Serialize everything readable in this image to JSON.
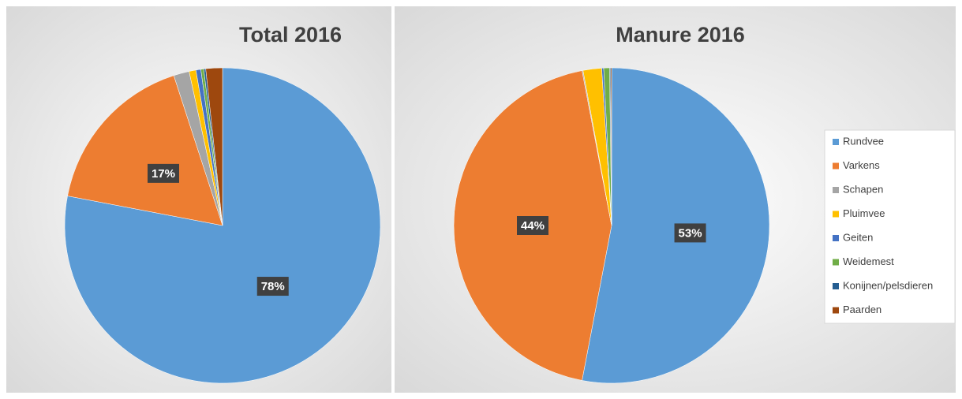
{
  "chart_data": [
    {
      "type": "pie",
      "title": "Total 2016",
      "values": [
        78,
        17,
        1.6,
        0.7,
        0.5,
        0.3,
        0.2,
        1.7
      ],
      "value_labels": [
        "78%",
        "17%",
        null,
        null,
        null,
        null,
        null,
        null
      ],
      "colors": [
        "#5b9bd5",
        "#ed7d31",
        "#a5a5a5",
        "#ffc000",
        "#4472c4",
        "#70ad47",
        "#255e91",
        "#9e480e"
      ]
    },
    {
      "type": "pie",
      "title": "Manure 2016",
      "categories": [
        "Rundvee",
        "Varkens",
        "Schapen",
        "Pluimvee",
        "Geiten",
        "Weidemest",
        "Konijnen/pelsdieren",
        "Paarden"
      ],
      "values": [
        53,
        44,
        0.1,
        1.9,
        0.2,
        0.6,
        0.1,
        0.1
      ],
      "value_labels": [
        "53%",
        "44%",
        null,
        null,
        null,
        null,
        null,
        null
      ],
      "colors": [
        "#5b9bd5",
        "#ed7d31",
        "#a5a5a5",
        "#ffc000",
        "#4472c4",
        "#70ad47",
        "#255e91",
        "#9e480e"
      ],
      "legend": "right"
    }
  ]
}
